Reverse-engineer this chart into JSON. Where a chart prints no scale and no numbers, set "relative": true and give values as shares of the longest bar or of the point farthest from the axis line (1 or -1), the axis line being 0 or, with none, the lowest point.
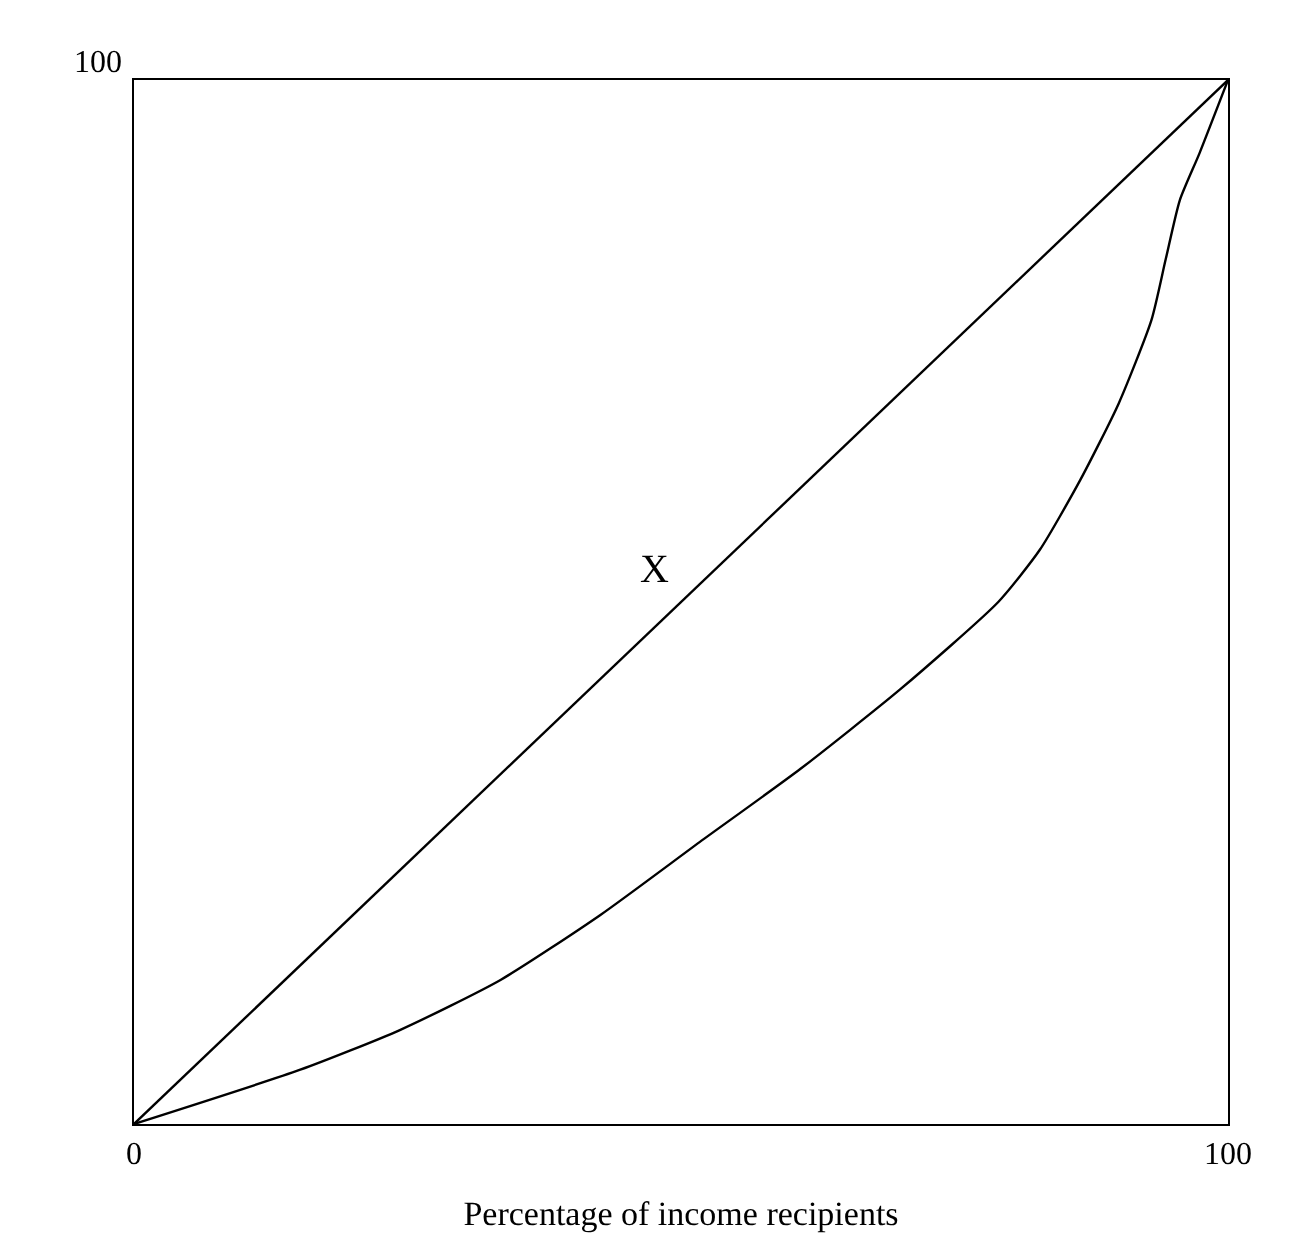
{
  "chart_data": {
    "type": "line",
    "xlabel": "Percentage of income recipients",
    "xlim": [
      0,
      100
    ],
    "xticks": [
      0,
      100
    ],
    "relative": true,
    "legend": false,
    "marker": "none",
    "line_style": "solid",
    "series": [
      {
        "color": "#000000",
        "x": [
          0,
          100
        ],
        "values": [
          0,
          1
        ]
      },
      {
        "color": "#000000",
        "x": [
          0,
          15.2,
          24.3,
          33.5,
          42.6,
          51.7,
          60.9,
          70,
          79,
          82.8,
          86.5,
          90,
          93,
          94.3,
          95.6,
          97.4,
          100
        ],
        "values": [
          0,
          0.052,
          0.09,
          0.138,
          0.2,
          0.27,
          0.34,
          0.416,
          0.5,
          0.55,
          0.617,
          0.69,
          0.77,
          0.828,
          0.885,
          0.93,
          1
        ]
      }
    ],
    "annotations": [
      "100",
      "X"
    ]
  }
}
